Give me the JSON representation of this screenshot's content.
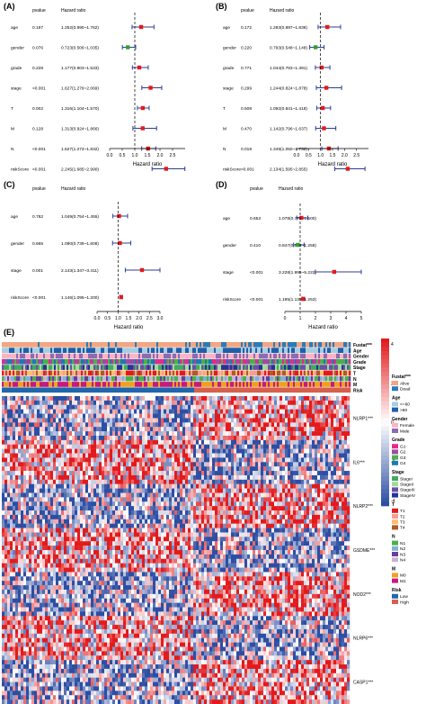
{
  "chart_data": [
    {
      "type": "forest",
      "panel_label": "(A)",
      "col_pvalue": "pvalue",
      "col_hr": "Hazard ratio",
      "xlabel": "Hazard ratio",
      "xlim": [
        0.0,
        3.0
      ],
      "xticks": [
        "0.0",
        "0.5",
        "1.0",
        "1.5",
        "2.0",
        "2.5"
      ],
      "ref_line": 1.0,
      "rows": [
        {
          "label": "age",
          "pvalue": "0.197",
          "hr_text": "1.252(0.890~1.762)",
          "hr": 1.252,
          "lo": 0.89,
          "hi": 1.762,
          "color": "#e31a1c"
        },
        {
          "label": "gender",
          "pvalue": "0.076",
          "hr_text": "0.723(0.506~1.035)",
          "hr": 0.723,
          "lo": 0.506,
          "hi": 1.035,
          "color": "#33a02c"
        },
        {
          "label": "grade",
          "pvalue": "0.228",
          "hr_text": "1.177(0.903~1.533)",
          "hr": 1.177,
          "lo": 0.903,
          "hi": 1.533,
          "color": "#e31a1c"
        },
        {
          "label": "stage",
          "pvalue": "<0.001",
          "hr_text": "1.627(1.279~2.069)",
          "hr": 1.627,
          "lo": 1.279,
          "hi": 2.069,
          "color": "#e31a1c"
        },
        {
          "label": "T",
          "pvalue": "0.002",
          "hr_text": "1.316(1.104~1.570)",
          "hr": 1.316,
          "lo": 1.104,
          "hi": 1.57,
          "color": "#e31a1c"
        },
        {
          "label": "M",
          "pvalue": "0.128",
          "hr_text": "1.313(0.924~1.866)",
          "hr": 1.313,
          "lo": 0.924,
          "hi": 1.866,
          "color": "#e31a1c"
        },
        {
          "label": "N",
          "pvalue": "<0.001",
          "hr_text": "1.527(1.273~1.832)",
          "hr": 1.527,
          "lo": 1.273,
          "hi": 1.832,
          "color": "#e31a1c"
        },
        {
          "label": "riskScore",
          "pvalue": "<0.001",
          "hr_text": "2.245(1.685~2.990)",
          "hr": 2.245,
          "lo": 1.685,
          "hi": 2.99,
          "color": "#e31a1c"
        }
      ]
    },
    {
      "type": "forest",
      "panel_label": "(B)",
      "col_pvalue": "pvalue",
      "col_hr": "Hazard ratio",
      "xlabel": "Hazard ratio",
      "xlim": [
        0.0,
        3.0
      ],
      "xticks": [
        "0.0",
        "0.5",
        "1.0",
        "1.5",
        "2.0",
        "2.5"
      ],
      "ref_line": 1.0,
      "rows": [
        {
          "label": "age",
          "pvalue": "0.172",
          "hr_text": "1.283(0.897~1.836)",
          "hr": 1.283,
          "lo": 0.897,
          "hi": 1.836,
          "color": "#e31a1c"
        },
        {
          "label": "gender",
          "pvalue": "0.220",
          "hr_text": "0.793(0.548~1.148)",
          "hr": 0.793,
          "lo": 0.548,
          "hi": 1.148,
          "color": "#33a02c"
        },
        {
          "label": "grade",
          "pvalue": "0.771",
          "hr_text": "1.044(0.783~1.391)",
          "hr": 1.044,
          "lo": 0.783,
          "hi": 1.391,
          "color": "#e31a1c"
        },
        {
          "label": "stage",
          "pvalue": "0.299",
          "hr_text": "1.244(0.824~1.878)",
          "hr": 1.244,
          "lo": 0.824,
          "hi": 1.878,
          "color": "#e31a1c"
        },
        {
          "label": "T",
          "pvalue": "0.508",
          "hr_text": "1.092(0.841~1.418)",
          "hr": 1.092,
          "lo": 0.841,
          "hi": 1.418,
          "color": "#e31a1c"
        },
        {
          "label": "M",
          "pvalue": "0.470",
          "hr_text": "1.142(0.796~1.637)",
          "hr": 1.142,
          "lo": 0.796,
          "hi": 1.637,
          "color": "#e31a1c"
        },
        {
          "label": "N",
          "pvalue": "0.019",
          "hr_text": "1.349(1.050~1.732)",
          "hr": 1.349,
          "lo": 1.05,
          "hi": 1.732,
          "color": "#e31a1c"
        },
        {
          "label": "riskScore",
          "pvalue": "<0.001",
          "hr_text": "2.134(1.595~2.855)",
          "hr": 2.134,
          "lo": 1.595,
          "hi": 2.855,
          "color": "#e31a1c"
        }
      ]
    },
    {
      "type": "forest",
      "panel_label": "(C)",
      "col_pvalue": "pvalue",
      "col_hr": "Hazard ratio",
      "xlabel": "Hazard ratio",
      "xlim": [
        0.0,
        3.0
      ],
      "xticks": [
        "0.0",
        "0.5",
        "1.0",
        "1.5",
        "2.0",
        "2.5",
        "3.0"
      ],
      "ref_line": 1.0,
      "rows": [
        {
          "label": "age",
          "pvalue": "0.782",
          "hr_text": "1.049(0.754~1.455)",
          "hr": 1.049,
          "lo": 0.754,
          "hi": 1.455,
          "color": "#e31a1c"
        },
        {
          "label": "gender",
          "pvalue": "0.665",
          "hr_text": "1.090(0.739~1.608)",
          "hr": 1.09,
          "lo": 0.739,
          "hi": 1.608,
          "color": "#e31a1c"
        },
        {
          "label": "stage",
          "pvalue": "0.001",
          "hr_text": "2.143(1.347~3.411)",
          "hr": 2.143,
          "lo": 1.347,
          "hi": 3.411,
          "color": "#e31a1c"
        },
        {
          "label": "riskScore",
          "pvalue": "<0.001",
          "hr_text": "1.146(1.095~1.200)",
          "hr": 1.146,
          "lo": 1.095,
          "hi": 1.2,
          "color": "#e31a1c"
        }
      ]
    },
    {
      "type": "forest",
      "panel_label": "(D)",
      "col_pvalue": "pvalue",
      "col_hr": "Hazard ratio",
      "xlabel": "Hazard ratio",
      "xlim": [
        0,
        5
      ],
      "xticks": [
        "0",
        "1",
        "2",
        "3",
        "4",
        "5"
      ],
      "ref_line": 1.0,
      "rows": [
        {
          "label": "age",
          "pvalue": "0.653",
          "hr_text": "1.078(0.776~1.500)",
          "hr": 1.078,
          "lo": 0.776,
          "hi": 1.5,
          "color": "#e31a1c"
        },
        {
          "label": "gender",
          "pvalue": "0.410",
          "hr_text": "0.847(0.569~1.258)",
          "hr": 0.847,
          "lo": 0.569,
          "hi": 1.258,
          "color": "#33a02c"
        },
        {
          "label": "stage",
          "pvalue": "<0.001",
          "hr_text": "3.228(1.995~5.222)",
          "hr": 3.228,
          "lo": 1.995,
          "hi": 5.222,
          "color": "#e31a1c"
        },
        {
          "label": "riskScore",
          "pvalue": "<0.001",
          "hr_text": "1.195(1.139~1.253)",
          "hr": 1.195,
          "lo": 1.139,
          "hi": 1.253,
          "color": "#e31a1c"
        }
      ]
    },
    {
      "type": "heatmap",
      "panel_label": "(E)",
      "annotation_tracks": [
        "Fustat***",
        "Age",
        "Gender",
        "Grade",
        "Stage",
        "T",
        "N",
        "M",
        "Risk"
      ],
      "genes": [
        "NLRP1***",
        "IL6***",
        "NLRP2***",
        "GSDME***",
        "NOD2***",
        "NLRP6***",
        "CASP1***"
      ],
      "color_scale": {
        "ticks": [
          "4",
          "2",
          "0",
          "-2",
          "-4"
        ],
        "high": "#e31a1c",
        "mid": "#ffffff",
        "low": "#2c4ea3"
      },
      "legends": [
        {
          "title": "Fustat***",
          "items": [
            {
              "label": "Alive",
              "color": "#f4a582"
            },
            {
              "label": "Dead",
              "color": "#2c7bb6"
            }
          ]
        },
        {
          "title": "Age",
          "items": [
            {
              "label": "<=60",
              "color": "#a6cee3"
            },
            {
              "label": ">60",
              "color": "#1f5fa8"
            }
          ]
        },
        {
          "title": "Gender",
          "items": [
            {
              "label": "Female",
              "color": "#fbb4c4"
            },
            {
              "label": "Male",
              "color": "#8c6bb1"
            }
          ]
        },
        {
          "title": "Grade",
          "items": [
            {
              "label": "G1",
              "color": "#e7298a"
            },
            {
              "label": "G2",
              "color": "#984ea3"
            },
            {
              "label": "G3",
              "color": "#4daf4a"
            },
            {
              "label": "G4",
              "color": "#1f78b4"
            }
          ]
        },
        {
          "title": "Stage",
          "items": [
            {
              "label": "StageI",
              "color": "#41ab5d"
            },
            {
              "label": "StageII",
              "color": "#a1d99b"
            },
            {
              "label": "StageIII",
              "color": "#6a51a3"
            },
            {
              "label": "StageIV",
              "color": "#253494"
            }
          ]
        },
        {
          "title": "T",
          "items": [
            {
              "label": "T1",
              "color": "#e31a1c"
            },
            {
              "label": "T2",
              "color": "#fb9a99"
            },
            {
              "label": "T3",
              "color": "#fdbf6f"
            },
            {
              "label": "T4",
              "color": "#b15928"
            }
          ]
        },
        {
          "title": "N",
          "items": [
            {
              "label": "N1",
              "color": "#4daf4a"
            },
            {
              "label": "N2",
              "color": "#80b1d3"
            },
            {
              "label": "N3",
              "color": "#6a3d9a"
            },
            {
              "label": "N4",
              "color": "#cab2d6"
            }
          ]
        },
        {
          "title": "M",
          "items": [
            {
              "label": "M0",
              "color": "#f0a01e"
            },
            {
              "label": "M1",
              "color": "#c51b7d"
            }
          ]
        },
        {
          "title": "Risk",
          "items": [
            {
              "label": "Low",
              "color": "#2166ac"
            },
            {
              "label": "High",
              "color": "#d6604d"
            }
          ]
        }
      ]
    }
  ]
}
